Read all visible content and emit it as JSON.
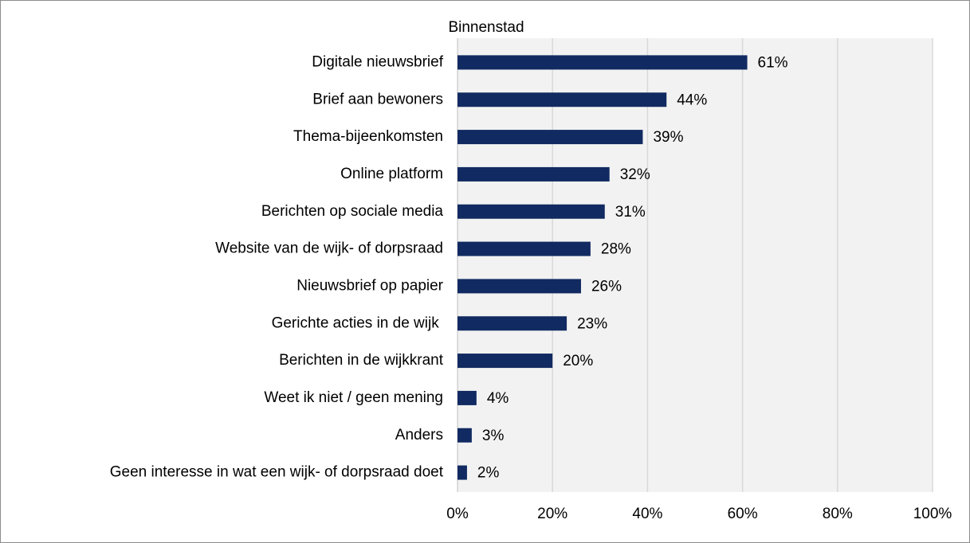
{
  "chart_data": {
    "type": "barh",
    "title": "Binnenstad",
    "categories": [
      "Digitale nieuwsbrief",
      "Brief aan bewoners",
      "Thema-bijeenkomsten",
      "Online platform",
      "Berichten op sociale media",
      "Website van de wijk- of dorpsraad",
      "Nieuwsbrief op papier",
      "Gerichte acties in de wijk ",
      "Berichten in de wijkkrant",
      "Weet ik niet / geen mening",
      "Anders",
      "Geen interesse in wat een wijk- of dorpsraad doet"
    ],
    "values": [
      61,
      44,
      39,
      32,
      31,
      28,
      26,
      23,
      20,
      4,
      3,
      2
    ],
    "value_labels": [
      "61%",
      "44%",
      "39%",
      "32%",
      "31%",
      "28%",
      "26%",
      "23%",
      "20%",
      "4%",
      "3%",
      "2%"
    ],
    "color": "#112a61",
    "xlim": [
      0,
      100
    ],
    "xticks": [
      {
        "value": 0,
        "label": "0%"
      },
      {
        "value": 20,
        "label": "20%"
      },
      {
        "value": 40,
        "label": "40%"
      },
      {
        "value": 60,
        "label": "60%"
      },
      {
        "value": 80,
        "label": "80%"
      },
      {
        "value": 100,
        "label": "100%"
      }
    ],
    "grid": true
  }
}
